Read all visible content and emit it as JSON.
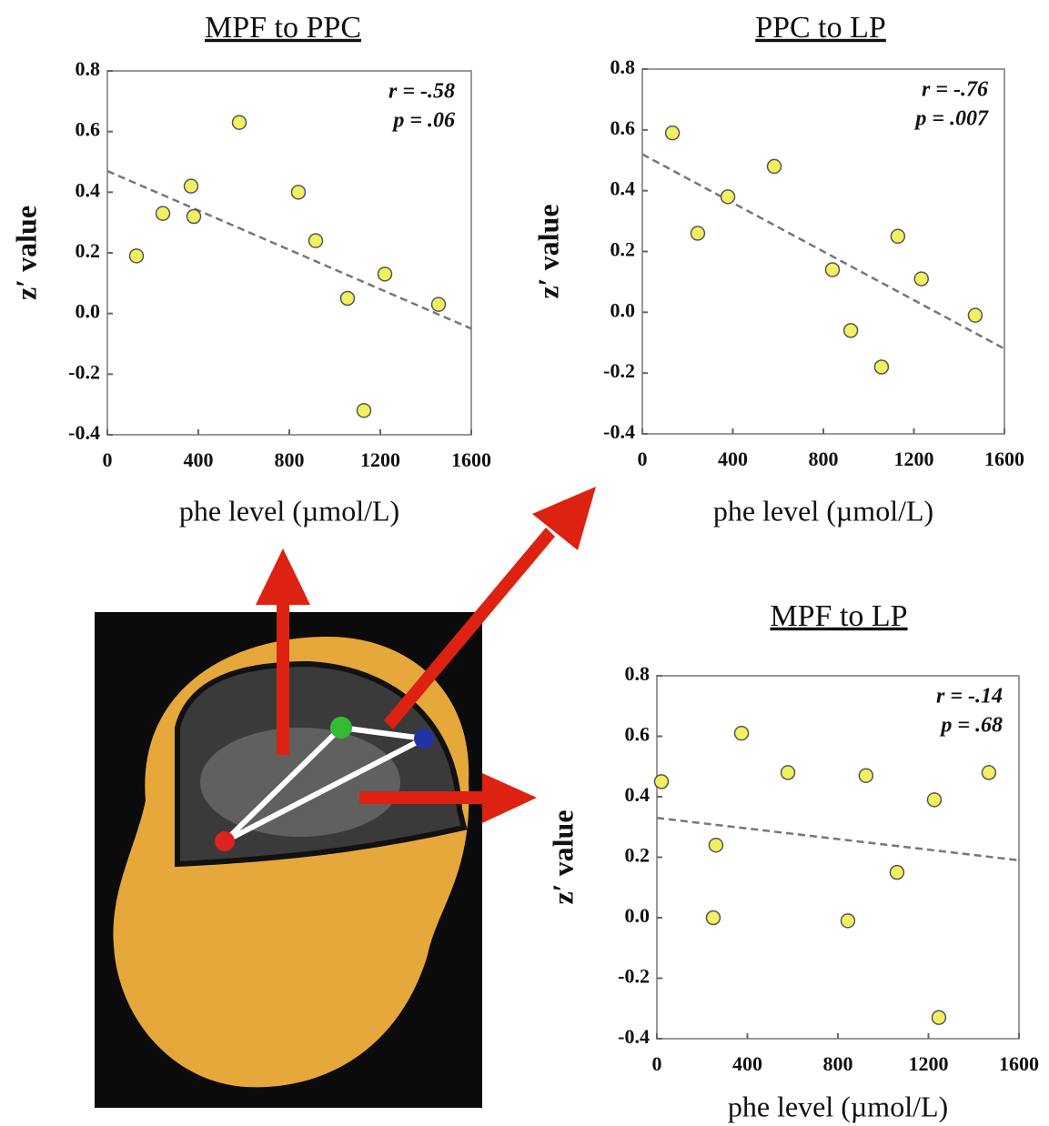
{
  "chart_data": [
    {
      "type": "scatter",
      "title": "MPF to PPC",
      "xlabel": "phe level (µmol/L)",
      "ylabel": "z′ value",
      "annotations": [
        "r = -.58",
        "p = .06"
      ],
      "x": [
        128,
        244,
        368,
        380,
        580,
        840,
        916,
        1056,
        1128,
        1220,
        1456
      ],
      "values": [
        0.19,
        0.33,
        0.42,
        0.32,
        0.63,
        0.4,
        0.24,
        0.05,
        -0.32,
        0.13,
        0.03
      ],
      "color": "#f0f060",
      "trendline": {
        "x": [
          0,
          1600
        ],
        "y": [
          0.47,
          -0.05
        ]
      },
      "xlim": [
        0,
        1600
      ],
      "ylim": [
        -0.4,
        0.8
      ],
      "xticks": [
        0,
        400,
        800,
        1200,
        1600
      ],
      "yticks": [
        0.8,
        0.6,
        0.4,
        0.2,
        {
          "value": 0,
          "label": "0.0"
        },
        -0.2,
        -0.4
      ]
    },
    {
      "type": "scatter",
      "title": "PPC to LP",
      "xlabel": "phe level (µmol/L)",
      "ylabel": "z′ value",
      "annotations": [
        "r = -.76",
        "p = .007"
      ],
      "x": [
        133,
        245,
        378,
        583,
        840,
        921,
        1057,
        1129,
        1233,
        1471
      ],
      "values": [
        0.59,
        0.26,
        0.38,
        0.48,
        0.14,
        -0.06,
        -0.18,
        0.25,
        0.11,
        -0.01
      ],
      "color": "#f0f060",
      "trendline": {
        "x": [
          0,
          1600
        ],
        "y": [
          0.52,
          -0.12
        ]
      },
      "xlim": [
        0,
        1600
      ],
      "ylim": [
        -0.4,
        0.8
      ],
      "xticks": [
        0,
        400,
        800,
        1200,
        1600
      ],
      "yticks": [
        0.8,
        0.6,
        0.4,
        0.2,
        {
          "value": 0,
          "label": "0.0"
        },
        -0.2,
        -0.4
      ]
    },
    {
      "type": "scatter",
      "title": "MPF to LP",
      "xlabel": "phe level (µmol/L)",
      "ylabel": "z′ value",
      "annotations": [
        "r = -.14",
        "p = .68"
      ],
      "x": [
        20,
        249,
        261,
        374,
        579,
        844,
        924,
        1061,
        1226,
        1246,
        1467
      ],
      "values": [
        0.45,
        0.0,
        0.24,
        0.61,
        0.48,
        -0.01,
        0.47,
        0.15,
        0.39,
        -0.33,
        0.48
      ],
      "color": "#f0f060",
      "trendline": {
        "x": [
          0,
          1600
        ],
        "y": [
          0.33,
          0.19
        ]
      },
      "xlim": [
        0,
        1600
      ],
      "ylim": [
        -0.4,
        0.8
      ],
      "xticks": [
        0,
        400,
        800,
        1200,
        1600
      ],
      "yticks": [
        0.8,
        0.6,
        0.4,
        0.2,
        {
          "value": 0,
          "label": "0.0"
        },
        -0.2,
        -0.4
      ]
    }
  ]
}
